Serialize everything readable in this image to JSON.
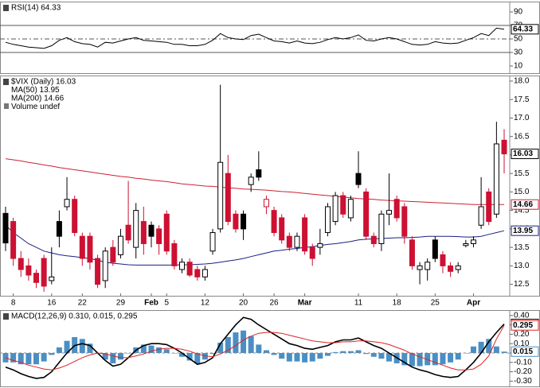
{
  "chart_data": [
    {
      "type": "rsi",
      "title": "RSI(14) 64.33",
      "tag": "64.33",
      "color": "#000000",
      "values": [
        45,
        42,
        40,
        38,
        37,
        36,
        40,
        48,
        52,
        46,
        43,
        42,
        38,
        45,
        44,
        47,
        50,
        52,
        48,
        47,
        46,
        45,
        42,
        42,
        40,
        40,
        42,
        48,
        58,
        52,
        50,
        49,
        55,
        57,
        52,
        47,
        46,
        44,
        47,
        44,
        43,
        45,
        49,
        52,
        50,
        52,
        56,
        48,
        47,
        50,
        52,
        50,
        46,
        42,
        41,
        42,
        46,
        44,
        43,
        44,
        48,
        52,
        58,
        55,
        66,
        64.33
      ],
      "ylim": [
        -0.6,
        105.3
      ],
      "yticks": [
        10,
        30,
        50,
        70,
        90
      ],
      "levels": [
        30,
        50,
        70
      ]
    },
    {
      "type": "candlestick",
      "title": "$VIX (Daily) 16.03",
      "tag": "16.03",
      "legend_extra": "Volume undef",
      "categories": [
        null,
        "8",
        null,
        null,
        null,
        null,
        "16",
        null,
        null,
        null,
        "22",
        null,
        null,
        null,
        null,
        "29",
        null,
        null,
        null,
        "Feb",
        null,
        "5",
        null,
        null,
        null,
        null,
        "12",
        null,
        null,
        null,
        null,
        "20",
        null,
        null,
        null,
        "26",
        null,
        null,
        null,
        "Mar",
        null,
        null,
        null,
        null,
        null,
        null,
        "11",
        null,
        null,
        null,
        null,
        "18",
        null,
        null,
        null,
        null,
        "25",
        null,
        null,
        null,
        null,
        "Apr",
        null,
        null,
        null,
        null
      ],
      "open": [
        14.42,
        14.2,
        13.2,
        13.0,
        12.8,
        13.2,
        12.6,
        14.2,
        14.6,
        14.8,
        13.8,
        13.8,
        13.2,
        12.6,
        13.5,
        13.3,
        14.1,
        13.5,
        14.2,
        14.1,
        14.0,
        14.4,
        13.6,
        12.9,
        13.1,
        12.9,
        12.7,
        13.4,
        14.0,
        15.5,
        14.4,
        14.4,
        15.2,
        15.6,
        14.6,
        14.5,
        14.3,
        13.8,
        13.5,
        14.3,
        13.5,
        13.5,
        13.9,
        14.2,
        14.9,
        14.3,
        15.5,
        15.0,
        13.8,
        13.6,
        14.4,
        14.8,
        14.6,
        13.7,
        12.9,
        12.9,
        13.7,
        13.3,
        13.0,
        12.9,
        13.55,
        13.6,
        14.1,
        15.0,
        14.4,
        16.4
      ],
      "high": [
        14.6,
        14.3,
        13.4,
        13.2,
        12.9,
        13.3,
        13.5,
        14.5,
        15.4,
        14.9,
        13.9,
        13.9,
        13.3,
        13.5,
        13.7,
        14.0,
        15.3,
        14.7,
        14.6,
        14.2,
        14.1,
        14.5,
        13.7,
        13.2,
        13.2,
        13.0,
        13.0,
        14.0,
        17.9,
        16.0,
        14.5,
        14.5,
        15.5,
        16.1,
        14.9,
        14.6,
        14.4,
        13.9,
        13.9,
        14.4,
        13.6,
        14.0,
        14.7,
        15.0,
        15.0,
        14.9,
        16.1,
        15.1,
        13.9,
        14.5,
        15.5,
        14.9,
        14.7,
        13.8,
        13.1,
        13.2,
        13.8,
        13.4,
        13.1,
        13.1,
        13.7,
        13.8,
        15.4,
        15.1,
        16.9,
        16.7
      ],
      "low": [
        13.4,
        13.0,
        12.7,
        12.6,
        12.4,
        12.3,
        12.5,
        13.5,
        14.5,
        13.8,
        13.0,
        12.9,
        12.4,
        12.4,
        13.0,
        13.2,
        13.6,
        13.2,
        13.3,
        13.5,
        13.3,
        13.3,
        12.9,
        12.8,
        12.7,
        12.6,
        12.6,
        13.3,
        13.9,
        14.1,
        13.9,
        13.7,
        15.0,
        15.3,
        14.4,
        13.8,
        13.6,
        13.4,
        13.4,
        13.3,
        13.0,
        13.3,
        13.8,
        14.1,
        14.3,
        14.2,
        15.1,
        13.7,
        13.5,
        13.4,
        14.1,
        14.2,
        13.6,
        12.9,
        12.5,
        12.6,
        13.1,
        12.8,
        12.7,
        12.8,
        13.5,
        13.5,
        14.0,
        14.1,
        14.3,
        15.5
      ],
      "close": [
        13.62,
        13.2,
        12.9,
        12.75,
        12.55,
        12.45,
        12.7,
        13.8,
        14.8,
        13.9,
        13.2,
        13.1,
        12.5,
        13.4,
        13.1,
        13.8,
        13.7,
        14.5,
        13.6,
        13.8,
        13.6,
        13.4,
        13.0,
        13.1,
        12.75,
        12.7,
        12.9,
        13.9,
        15.8,
        14.2,
        14.0,
        14.0,
        15.4,
        15.4,
        14.8,
        13.9,
        13.7,
        13.5,
        13.8,
        13.4,
        13.2,
        13.6,
        14.6,
        14.9,
        14.4,
        14.8,
        15.2,
        13.8,
        13.6,
        14.4,
        14.5,
        14.3,
        13.8,
        13.0,
        13.0,
        13.1,
        13.2,
        13.0,
        12.85,
        13.0,
        13.6,
        13.7,
        14.6,
        14.2,
        16.3,
        16.03
      ],
      "series": [
        {
          "name": "MA(50) 13.95",
          "tag": "13.95",
          "color": "#1a1f80",
          "values": [
            14.1,
            13.9,
            13.75,
            13.6,
            13.5,
            13.4,
            13.35,
            13.3,
            13.27,
            13.25,
            13.22,
            13.2,
            13.15,
            13.1,
            13.07,
            13.05,
            13.03,
            13.02,
            13.02,
            13.02,
            13.02,
            13.02,
            13.02,
            13.03,
            13.03,
            13.04,
            13.05,
            13.07,
            13.1,
            13.13,
            13.16,
            13.2,
            13.25,
            13.3,
            13.35,
            13.4,
            13.42,
            13.45,
            13.47,
            13.5,
            13.52,
            13.55,
            13.58,
            13.6,
            13.63,
            13.66,
            13.7,
            13.72,
            13.73,
            13.74,
            13.75,
            13.76,
            13.76,
            13.77,
            13.78,
            13.8,
            13.8,
            13.8,
            13.8,
            13.79,
            13.78,
            13.78,
            13.8,
            13.85,
            13.9,
            13.95
          ]
        },
        {
          "name": "MA(200) 14.66",
          "tag": "14.66",
          "color": "#cc2233",
          "values": [
            15.9,
            15.87,
            15.84,
            15.8,
            15.77,
            15.73,
            15.7,
            15.66,
            15.63,
            15.6,
            15.57,
            15.54,
            15.51,
            15.48,
            15.45,
            15.42,
            15.4,
            15.37,
            15.35,
            15.32,
            15.3,
            15.28,
            15.25,
            15.22,
            15.2,
            15.18,
            15.16,
            15.15,
            15.13,
            15.11,
            15.1,
            15.08,
            15.07,
            15.06,
            15.05,
            15.03,
            15.01,
            15.0,
            14.98,
            14.96,
            14.94,
            14.92,
            14.9,
            14.88,
            14.86,
            14.84,
            14.82,
            14.81,
            14.8,
            14.78,
            14.77,
            14.76,
            14.75,
            14.74,
            14.73,
            14.72,
            14.71,
            14.7,
            14.69,
            14.68,
            14.67,
            14.66,
            14.66,
            14.66,
            14.66,
            14.66
          ]
        }
      ],
      "up_color": "#000000",
      "down_color": "#cc1133",
      "ylim": [
        12.19,
        18.15
      ],
      "yticks": [
        12.5,
        {
          "value": 13,
          "label": "13.0"
        },
        13.5,
        {
          "value": 14,
          "label": "14.0"
        },
        14.5,
        {
          "value": 15,
          "label": "15.0"
        },
        15.5,
        {
          "value": 16,
          "label": "16.0"
        },
        16.5,
        {
          "value": 17,
          "label": "17.0"
        },
        17.5,
        {
          "value": 18,
          "label": "18.0"
        }
      ]
    },
    {
      "type": "macd",
      "title": "MACD(12,26,9) 0.310, 0.015, 0.295",
      "series": [
        {
          "name": "MACD",
          "tag": "0.310",
          "color": "#000000",
          "values": [
            -0.15,
            -0.18,
            -0.22,
            -0.25,
            -0.27,
            -0.26,
            -0.2,
            -0.1,
            0.0,
            0.08,
            0.1,
            0.08,
            0.0,
            -0.08,
            -0.14,
            -0.12,
            -0.05,
            0.03,
            0.08,
            0.1,
            0.1,
            0.09,
            0.05,
            0.0,
            -0.06,
            -0.12,
            -0.1,
            -0.05,
            0.1,
            0.2,
            0.3,
            0.38,
            0.36,
            0.3,
            0.25,
            0.2,
            0.15,
            0.1,
            0.08,
            0.05,
            0.04,
            0.06,
            0.08,
            0.12,
            0.14,
            0.14,
            0.16,
            0.12,
            0.08,
            0.05,
            0.0,
            -0.05,
            -0.1,
            -0.15,
            -0.18,
            -0.2,
            -0.23,
            -0.25,
            -0.26,
            -0.25,
            -0.18,
            -0.1,
            0.0,
            0.12,
            0.22,
            0.31
          ]
        },
        {
          "name": "Histogram",
          "tag": "0.015",
          "color": "#4a8fc4",
          "values": [
            -0.1,
            -0.1,
            -0.12,
            -0.12,
            -0.12,
            -0.09,
            -0.02,
            0.06,
            0.13,
            0.17,
            0.15,
            0.1,
            0.0,
            -0.07,
            -0.11,
            -0.07,
            0.0,
            0.06,
            0.09,
            0.08,
            0.06,
            0.04,
            0.0,
            -0.04,
            -0.08,
            -0.11,
            -0.07,
            -0.01,
            0.11,
            0.17,
            0.22,
            0.24,
            0.18,
            0.09,
            0.03,
            -0.02,
            -0.06,
            -0.09,
            -0.09,
            -0.1,
            -0.09,
            -0.06,
            -0.03,
            0.01,
            0.02,
            0.02,
            0.03,
            -0.01,
            -0.04,
            -0.06,
            -0.09,
            -0.11,
            -0.13,
            -0.14,
            -0.14,
            -0.13,
            -0.13,
            -0.12,
            -0.1,
            -0.07,
            0.0,
            0.07,
            0.12,
            0.15,
            0.07,
            0.015
          ]
        },
        {
          "name": "Signal",
          "tag": "0.295",
          "color": "#dd2222",
          "values": [
            -0.05,
            -0.08,
            -0.1,
            -0.13,
            -0.15,
            -0.17,
            -0.18,
            -0.16,
            -0.13,
            -0.09,
            -0.05,
            -0.02,
            0.0,
            -0.01,
            -0.03,
            -0.05,
            -0.05,
            -0.03,
            -0.01,
            0.02,
            0.04,
            0.05,
            0.05,
            0.04,
            0.02,
            -0.01,
            -0.03,
            -0.04,
            -0.01,
            0.03,
            0.08,
            0.14,
            0.18,
            0.21,
            0.22,
            0.22,
            0.21,
            0.19,
            0.17,
            0.15,
            0.13,
            0.12,
            0.11,
            0.11,
            0.12,
            0.12,
            0.13,
            0.13,
            0.12,
            0.11,
            0.09,
            0.06,
            0.03,
            -0.01,
            -0.04,
            -0.07,
            -0.1,
            -0.13,
            -0.16,
            -0.18,
            -0.18,
            -0.17,
            -0.12,
            -0.03,
            0.15,
            0.295
          ]
        }
      ],
      "ylim": [
        -0.356,
        0.458
      ],
      "yticks": [
        {
          "value": 0.4,
          "label": "0.40"
        },
        {
          "value": 0.3,
          "label": "0.30"
        },
        {
          "value": 0.2,
          "label": "0.20"
        },
        {
          "value": 0.1,
          "label": "0.10"
        },
        {
          "value": 0,
          "label": "0.00"
        },
        {
          "value": -0.1,
          "label": "-0.10"
        },
        {
          "value": -0.2,
          "label": "-0.20"
        },
        {
          "value": -0.3,
          "label": "-0.30"
        }
      ]
    }
  ]
}
